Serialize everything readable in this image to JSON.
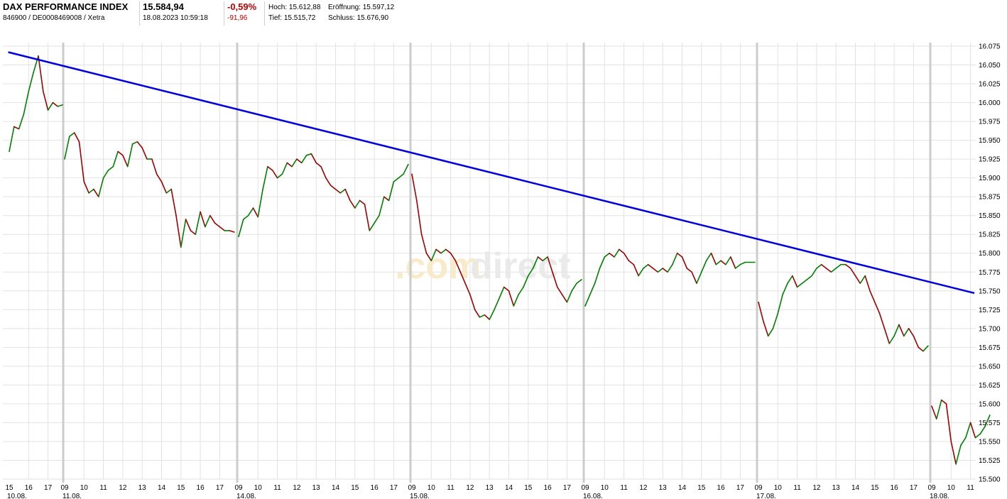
{
  "header": {
    "name": "DAX PERFORMANCE INDEX",
    "ids": "846900 / DE0008469008 / Xetra",
    "price": "15.584,94",
    "datetime": "18.08.2023 10:59:18",
    "change_pct": "-0,59%",
    "change_abs": "-91,96",
    "hoch_label": "Hoch:",
    "hoch": "15.612,88",
    "eroeffnung_label": "Eröffnung:",
    "eroeffnung": "15.597,12",
    "tief_label": "Tief:",
    "tief": "15.515,72",
    "schluss_label": "Schluss:",
    "schluss": "15.676,90"
  },
  "watermark": {
    "part1": ".com",
    "part2": "direct"
  },
  "colors": {
    "up": "#008000",
    "down": "#a00000",
    "trendline": "#0000dd",
    "grid": "#e2e2e2",
    "session": "#cccccc"
  },
  "chart_data": {
    "type": "line",
    "title": "",
    "xlabel": "",
    "ylabel": "",
    "ylim": [
      15500,
      16075
    ],
    "y_ticks": [
      "16.075",
      "16.050",
      "16.025",
      "16.000",
      "15.975",
      "15.950",
      "15.925",
      "15.900",
      "15.875",
      "15.850",
      "15.825",
      "15.800",
      "15.775",
      "15.750",
      "15.725",
      "15.700",
      "15.675",
      "15.650",
      "15.625",
      "15.600",
      "15.575",
      "15.550",
      "15.525",
      "15.500"
    ],
    "sessions": [
      {
        "date": "10.08.",
        "hours": [
          "15",
          "16",
          "17"
        ],
        "first_hour": 15
      },
      {
        "date": "11.08.",
        "hours": [
          "09",
          "10",
          "11",
          "12",
          "13",
          "14",
          "15",
          "16",
          "17"
        ],
        "first_hour": 9
      },
      {
        "date": "14.08.",
        "hours": [
          "09",
          "10",
          "11",
          "12",
          "13",
          "14",
          "15",
          "16",
          "17"
        ],
        "first_hour": 9
      },
      {
        "date": "15.08.",
        "hours": [
          "09",
          "10",
          "11",
          "12",
          "13",
          "14",
          "15",
          "16",
          "17"
        ],
        "first_hour": 9
      },
      {
        "date": "16.08.",
        "hours": [
          "09",
          "10",
          "11",
          "12",
          "13",
          "14",
          "15",
          "16",
          "17"
        ],
        "first_hour": 9
      },
      {
        "date": "17.08.",
        "hours": [
          "09",
          "10",
          "11",
          "12",
          "13",
          "14",
          "15",
          "16",
          "17"
        ],
        "first_hour": 9
      },
      {
        "date": "18.08.",
        "hours": [
          "09",
          "10",
          "11"
        ],
        "first_hour": 9
      }
    ],
    "series": [
      {
        "label": "10.08.",
        "values": [
          {
            "t": "15:00",
            "v": 15935
          },
          {
            "t": "15:15",
            "v": 15968
          },
          {
            "t": "15:30",
            "v": 15965
          },
          {
            "t": "15:45",
            "v": 15985
          },
          {
            "t": "16:00",
            "v": 16015
          },
          {
            "t": "16:15",
            "v": 16040
          },
          {
            "t": "16:30",
            "v": 16062
          },
          {
            "t": "16:45",
            "v": 16015
          },
          {
            "t": "17:00",
            "v": 15990
          },
          {
            "t": "17:15",
            "v": 16000
          },
          {
            "t": "17:30",
            "v": 15995
          },
          {
            "t": "17:45",
            "v": 15997
          }
        ]
      },
      {
        "label": "11.08.",
        "values": [
          {
            "t": "09:00",
            "v": 15925
          },
          {
            "t": "09:15",
            "v": 15955
          },
          {
            "t": "09:30",
            "v": 15960
          },
          {
            "t": "09:45",
            "v": 15948
          },
          {
            "t": "10:00",
            "v": 15895
          },
          {
            "t": "10:15",
            "v": 15880
          },
          {
            "t": "10:30",
            "v": 15885
          },
          {
            "t": "10:45",
            "v": 15875
          },
          {
            "t": "11:00",
            "v": 15900
          },
          {
            "t": "11:15",
            "v": 15910
          },
          {
            "t": "11:30",
            "v": 15915
          },
          {
            "t": "11:45",
            "v": 15935
          },
          {
            "t": "12:00",
            "v": 15930
          },
          {
            "t": "12:15",
            "v": 15915
          },
          {
            "t": "12:30",
            "v": 15945
          },
          {
            "t": "12:45",
            "v": 15948
          },
          {
            "t": "13:00",
            "v": 15940
          },
          {
            "t": "13:15",
            "v": 15925
          },
          {
            "t": "13:30",
            "v": 15925
          },
          {
            "t": "13:45",
            "v": 15905
          },
          {
            "t": "14:00",
            "v": 15895
          },
          {
            "t": "14:15",
            "v": 15880
          },
          {
            "t": "14:30",
            "v": 15885
          },
          {
            "t": "14:45",
            "v": 15850
          },
          {
            "t": "15:00",
            "v": 15808
          },
          {
            "t": "15:15",
            "v": 15845
          },
          {
            "t": "15:30",
            "v": 15830
          },
          {
            "t": "15:45",
            "v": 15825
          },
          {
            "t": "16:00",
            "v": 15855
          },
          {
            "t": "16:15",
            "v": 15835
          },
          {
            "t": "16:30",
            "v": 15850
          },
          {
            "t": "16:45",
            "v": 15840
          },
          {
            "t": "17:00",
            "v": 15835
          },
          {
            "t": "17:15",
            "v": 15830
          },
          {
            "t": "17:30",
            "v": 15830
          },
          {
            "t": "17:45",
            "v": 15828
          }
        ]
      },
      {
        "label": "14.08.",
        "values": [
          {
            "t": "09:00",
            "v": 15822
          },
          {
            "t": "09:15",
            "v": 15845
          },
          {
            "t": "09:30",
            "v": 15850
          },
          {
            "t": "09:45",
            "v": 15860
          },
          {
            "t": "10:00",
            "v": 15848
          },
          {
            "t": "10:15",
            "v": 15885
          },
          {
            "t": "10:30",
            "v": 15915
          },
          {
            "t": "10:45",
            "v": 15910
          },
          {
            "t": "11:00",
            "v": 15900
          },
          {
            "t": "11:15",
            "v": 15905
          },
          {
            "t": "11:30",
            "v": 15920
          },
          {
            "t": "11:45",
            "v": 15915
          },
          {
            "t": "12:00",
            "v": 15925
          },
          {
            "t": "12:15",
            "v": 15920
          },
          {
            "t": "12:30",
            "v": 15930
          },
          {
            "t": "12:45",
            "v": 15932
          },
          {
            "t": "13:00",
            "v": 15920
          },
          {
            "t": "13:15",
            "v": 15915
          },
          {
            "t": "13:30",
            "v": 15900
          },
          {
            "t": "13:45",
            "v": 15890
          },
          {
            "t": "14:00",
            "v": 15885
          },
          {
            "t": "14:15",
            "v": 15880
          },
          {
            "t": "14:30",
            "v": 15885
          },
          {
            "t": "14:45",
            "v": 15870
          },
          {
            "t": "15:00",
            "v": 15860
          },
          {
            "t": "15:15",
            "v": 15870
          },
          {
            "t": "15:30",
            "v": 15865
          },
          {
            "t": "15:45",
            "v": 15830
          },
          {
            "t": "16:00",
            "v": 15840
          },
          {
            "t": "16:15",
            "v": 15850
          },
          {
            "t": "16:30",
            "v": 15875
          },
          {
            "t": "16:45",
            "v": 15870
          },
          {
            "t": "17:00",
            "v": 15895
          },
          {
            "t": "17:15",
            "v": 15900
          },
          {
            "t": "17:30",
            "v": 15905
          },
          {
            "t": "17:45",
            "v": 15918
          }
        ]
      },
      {
        "label": "15.08.",
        "values": [
          {
            "t": "09:00",
            "v": 15905
          },
          {
            "t": "09:15",
            "v": 15870
          },
          {
            "t": "09:30",
            "v": 15825
          },
          {
            "t": "09:45",
            "v": 15800
          },
          {
            "t": "10:00",
            "v": 15790
          },
          {
            "t": "10:15",
            "v": 15805
          },
          {
            "t": "10:30",
            "v": 15800
          },
          {
            "t": "10:45",
            "v": 15805
          },
          {
            "t": "11:00",
            "v": 15800
          },
          {
            "t": "11:15",
            "v": 15790
          },
          {
            "t": "11:30",
            "v": 15775
          },
          {
            "t": "11:45",
            "v": 15760
          },
          {
            "t": "12:00",
            "v": 15745
          },
          {
            "t": "12:15",
            "v": 15725
          },
          {
            "t": "12:30",
            "v": 15715
          },
          {
            "t": "12:45",
            "v": 15718
          },
          {
            "t": "13:00",
            "v": 15712
          },
          {
            "t": "13:15",
            "v": 15725
          },
          {
            "t": "13:30",
            "v": 15740
          },
          {
            "t": "13:45",
            "v": 15755
          },
          {
            "t": "14:00",
            "v": 15750
          },
          {
            "t": "14:15",
            "v": 15730
          },
          {
            "t": "14:30",
            "v": 15745
          },
          {
            "t": "14:45",
            "v": 15755
          },
          {
            "t": "15:00",
            "v": 15770
          },
          {
            "t": "15:15",
            "v": 15780
          },
          {
            "t": "15:30",
            "v": 15795
          },
          {
            "t": "15:45",
            "v": 15790
          },
          {
            "t": "16:00",
            "v": 15795
          },
          {
            "t": "16:15",
            "v": 15775
          },
          {
            "t": "16:30",
            "v": 15755
          },
          {
            "t": "16:45",
            "v": 15745
          },
          {
            "t": "17:00",
            "v": 15735
          },
          {
            "t": "17:15",
            "v": 15750
          },
          {
            "t": "17:30",
            "v": 15760
          },
          {
            "t": "17:45",
            "v": 15765
          }
        ]
      },
      {
        "label": "16.08.",
        "values": [
          {
            "t": "09:00",
            "v": 15730
          },
          {
            "t": "09:15",
            "v": 15745
          },
          {
            "t": "09:30",
            "v": 15760
          },
          {
            "t": "09:45",
            "v": 15780
          },
          {
            "t": "10:00",
            "v": 15795
          },
          {
            "t": "10:15",
            "v": 15800
          },
          {
            "t": "10:30",
            "v": 15795
          },
          {
            "t": "10:45",
            "v": 15805
          },
          {
            "t": "11:00",
            "v": 15800
          },
          {
            "t": "11:15",
            "v": 15790
          },
          {
            "t": "11:30",
            "v": 15785
          },
          {
            "t": "11:45",
            "v": 15770
          },
          {
            "t": "12:00",
            "v": 15780
          },
          {
            "t": "12:15",
            "v": 15785
          },
          {
            "t": "12:30",
            "v": 15780
          },
          {
            "t": "12:45",
            "v": 15775
          },
          {
            "t": "13:00",
            "v": 15780
          },
          {
            "t": "13:15",
            "v": 15775
          },
          {
            "t": "13:30",
            "v": 15785
          },
          {
            "t": "13:45",
            "v": 15800
          },
          {
            "t": "14:00",
            "v": 15795
          },
          {
            "t": "14:15",
            "v": 15780
          },
          {
            "t": "14:30",
            "v": 15775
          },
          {
            "t": "14:45",
            "v": 15760
          },
          {
            "t": "15:00",
            "v": 15775
          },
          {
            "t": "15:15",
            "v": 15790
          },
          {
            "t": "15:30",
            "v": 15800
          },
          {
            "t": "15:45",
            "v": 15785
          },
          {
            "t": "16:00",
            "v": 15790
          },
          {
            "t": "16:15",
            "v": 15785
          },
          {
            "t": "16:30",
            "v": 15795
          },
          {
            "t": "16:45",
            "v": 15780
          },
          {
            "t": "17:00",
            "v": 15785
          },
          {
            "t": "17:15",
            "v": 15788
          },
          {
            "t": "17:30",
            "v": 15788
          },
          {
            "t": "17:45",
            "v": 15788
          }
        ]
      },
      {
        "label": "17.08.",
        "values": [
          {
            "t": "09:00",
            "v": 15735
          },
          {
            "t": "09:15",
            "v": 15710
          },
          {
            "t": "09:30",
            "v": 15690
          },
          {
            "t": "09:45",
            "v": 15700
          },
          {
            "t": "10:00",
            "v": 15720
          },
          {
            "t": "10:15",
            "v": 15745
          },
          {
            "t": "10:30",
            "v": 15760
          },
          {
            "t": "10:45",
            "v": 15770
          },
          {
            "t": "11:00",
            "v": 15755
          },
          {
            "t": "11:15",
            "v": 15760
          },
          {
            "t": "11:30",
            "v": 15765
          },
          {
            "t": "11:45",
            "v": 15770
          },
          {
            "t": "12:00",
            "v": 15780
          },
          {
            "t": "12:15",
            "v": 15785
          },
          {
            "t": "12:30",
            "v": 15780
          },
          {
            "t": "12:45",
            "v": 15775
          },
          {
            "t": "13:00",
            "v": 15780
          },
          {
            "t": "13:15",
            "v": 15785
          },
          {
            "t": "13:30",
            "v": 15785
          },
          {
            "t": "13:45",
            "v": 15780
          },
          {
            "t": "14:00",
            "v": 15770
          },
          {
            "t": "14:15",
            "v": 15760
          },
          {
            "t": "14:30",
            "v": 15770
          },
          {
            "t": "14:45",
            "v": 15750
          },
          {
            "t": "15:00",
            "v": 15735
          },
          {
            "t": "15:15",
            "v": 15720
          },
          {
            "t": "15:30",
            "v": 15700
          },
          {
            "t": "15:45",
            "v": 15680
          },
          {
            "t": "16:00",
            "v": 15690
          },
          {
            "t": "16:15",
            "v": 15705
          },
          {
            "t": "16:30",
            "v": 15690
          },
          {
            "t": "16:45",
            "v": 15700
          },
          {
            "t": "17:00",
            "v": 15690
          },
          {
            "t": "17:15",
            "v": 15675
          },
          {
            "t": "17:30",
            "v": 15670
          },
          {
            "t": "17:45",
            "v": 15677
          }
        ]
      },
      {
        "label": "18.08.",
        "values": [
          {
            "t": "09:00",
            "v": 15597
          },
          {
            "t": "09:15",
            "v": 15580
          },
          {
            "t": "09:30",
            "v": 15605
          },
          {
            "t": "09:45",
            "v": 15600
          },
          {
            "t": "10:00",
            "v": 15550
          },
          {
            "t": "10:15",
            "v": 15520
          },
          {
            "t": "10:30",
            "v": 15545
          },
          {
            "t": "10:45",
            "v": 15555
          },
          {
            "t": "11:00",
            "v": 15575
          },
          {
            "t": "11:15",
            "v": 15555
          },
          {
            "t": "11:30",
            "v": 15560
          },
          {
            "t": "11:45",
            "v": 15570
          },
          {
            "t": "12:00",
            "v": 15585
          }
        ]
      }
    ],
    "trendline": {
      "from": {
        "session": 0,
        "hour": 14.95,
        "v": 16067
      },
      "to": {
        "session": 6,
        "hour": 11.2,
        "v": 15747
      }
    },
    "grid": true
  }
}
